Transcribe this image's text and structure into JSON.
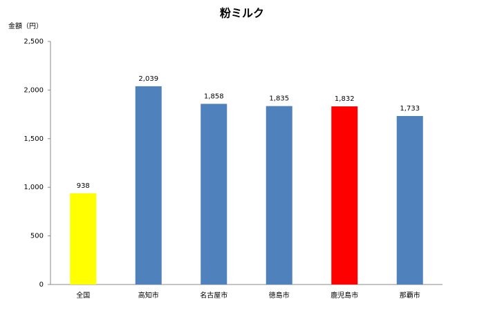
{
  "chart_data": {
    "type": "bar",
    "title": "粉ミルク",
    "y_label": "金額（円）",
    "categories": [
      "全国",
      "高知市",
      "名古屋市",
      "徳島市",
      "鹿児島市",
      "那覇市"
    ],
    "values": [
      938,
      2039,
      1858,
      1835,
      1832,
      1733
    ],
    "value_labels": [
      "938",
      "2,039",
      "1,858",
      "1,835",
      "1,832",
      "1,733"
    ],
    "colors": [
      "#ffff00",
      "#4f81bd",
      "#4f81bd",
      "#4f81bd",
      "#ff0000",
      "#4f81bd"
    ],
    "ylim": [
      0,
      2500
    ],
    "yticks": [
      0,
      500,
      {
        "value": 1000,
        "label": "1,000"
      },
      {
        "value": 1500,
        "label": "1,500"
      },
      {
        "value": 2000,
        "label": "2,000"
      },
      {
        "value": 2500,
        "label": "2,500"
      }
    ],
    "grid": false
  }
}
